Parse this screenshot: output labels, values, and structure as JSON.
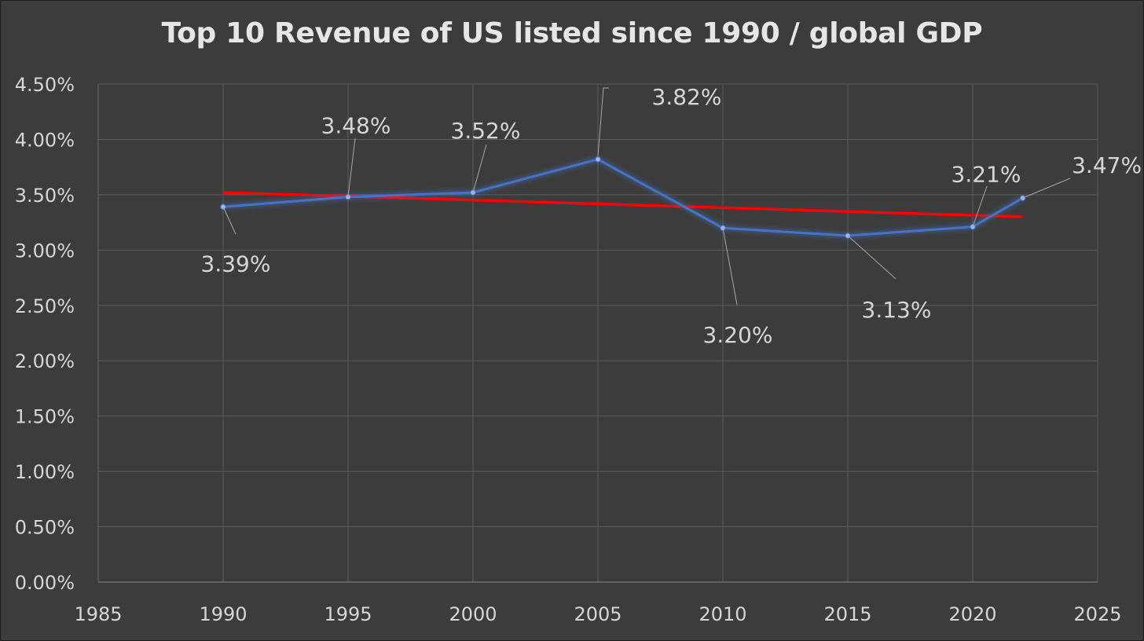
{
  "chart_data": {
    "type": "line",
    "title": "Top 10 Revenue of US listed since 1990 / global GDP",
    "xlabel": "",
    "ylabel": "",
    "xlim": [
      1985,
      2025
    ],
    "ylim": [
      0,
      0.045
    ],
    "x_ticks": [
      1985,
      1990,
      1995,
      2000,
      2005,
      2010,
      2015,
      2020,
      2025
    ],
    "y_ticks": [
      0,
      0.005,
      0.01,
      0.015,
      0.02,
      0.025,
      0.03,
      0.035,
      0.04,
      0.045
    ],
    "y_tick_labels": [
      "0.00%",
      "0.50%",
      "1.00%",
      "1.50%",
      "2.00%",
      "2.50%",
      "3.00%",
      "3.50%",
      "4.00%",
      "4.50%"
    ],
    "grid": true,
    "series": [
      {
        "x": [
          1990,
          1995,
          2000,
          2005,
          2010,
          2015,
          2020,
          2022
        ],
        "y": [
          0.0339,
          0.0348,
          0.0352,
          0.0382,
          0.032,
          0.0313,
          0.0321,
          0.0347
        ],
        "data_labels": [
          "3.39%",
          "3.48%",
          "3.52%",
          "3.82%",
          "3.20%",
          "3.13%",
          "3.21%",
          "3.47%"
        ],
        "color": "#4472c4"
      }
    ],
    "trendline": {
      "type": "linear",
      "x": [
        1990,
        2022
      ],
      "y": [
        0.0352,
        0.033
      ],
      "color": "#ff0000"
    }
  }
}
